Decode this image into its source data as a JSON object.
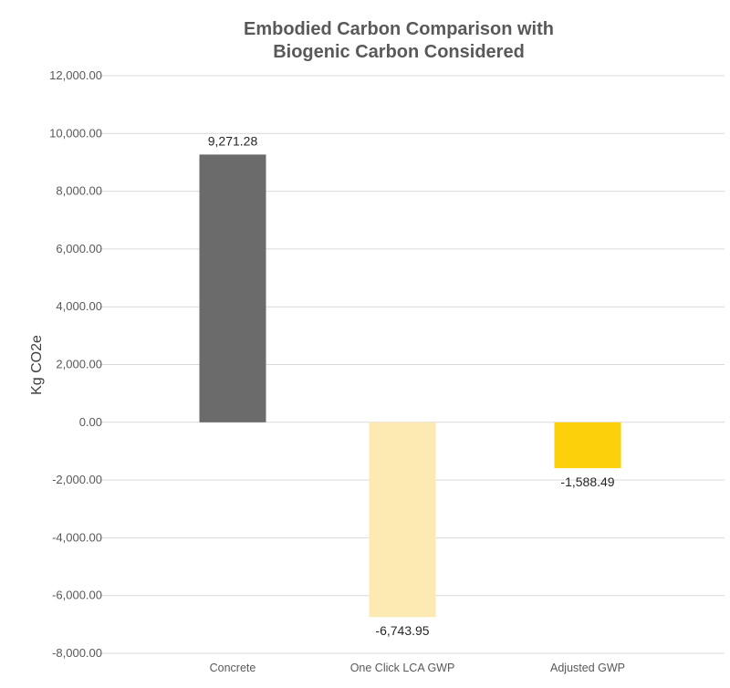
{
  "chart_data": {
    "type": "bar",
    "title": [
      "Embodied Carbon Comparison with",
      "Biogenic Carbon Considered"
    ],
    "xlabel": "",
    "ylabel": "Kg CO2e",
    "categories": [
      "Concrete",
      "One Click LCA GWP",
      "Adjusted GWP"
    ],
    "values": [
      9271.28,
      -6743.95,
      -1588.49
    ],
    "data_labels": [
      "9,271.28",
      "-6,743.95",
      "-1,588.49"
    ],
    "colors": [
      "#6b6b6b",
      "#fde9b2",
      "#fdd00c"
    ],
    "ylim": [
      -8000,
      12000
    ],
    "yticks": [
      12000,
      10000,
      8000,
      6000,
      4000,
      2000,
      0,
      -2000,
      -4000,
      -6000,
      -8000
    ],
    "ytick_labels": [
      "12,000.00",
      "10,000.00",
      "8,000.00",
      "6,000.00",
      "4,000.00",
      "2,000.00",
      "0.00",
      "-2,000.00",
      "-4,000.00",
      "-6,000.00",
      "-8,000.00"
    ],
    "grid": true,
    "legend": "none"
  }
}
